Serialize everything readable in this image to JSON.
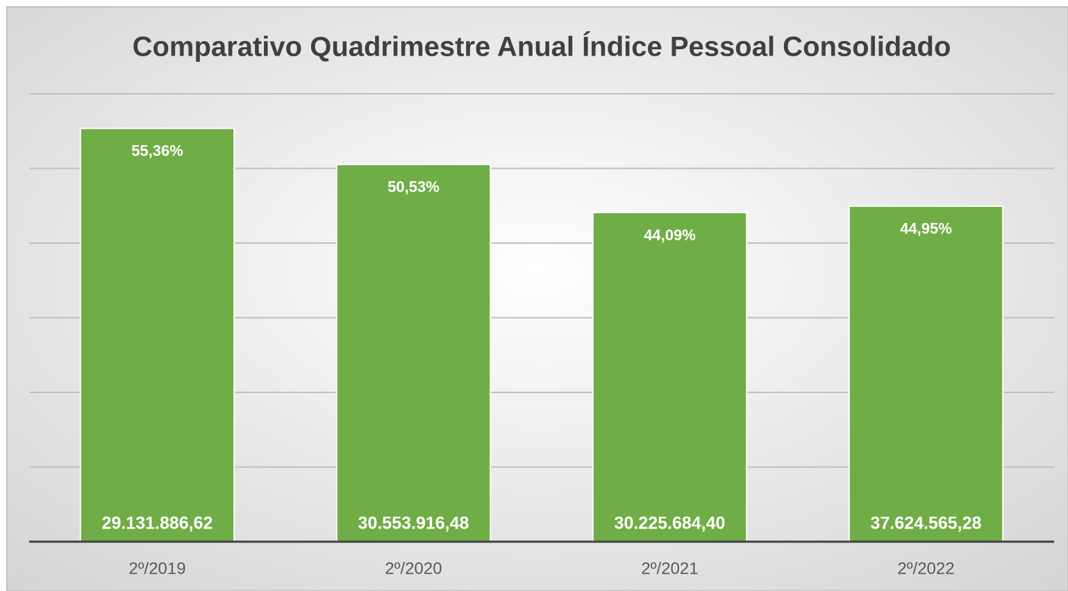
{
  "chart_data": {
    "type": "bar",
    "title": "Comparativo Quadrimestre Anual Índice Pessoal Consolidado",
    "categories": [
      "2º/2019",
      "2º/2020",
      "2º/2021",
      "2º/2022"
    ],
    "values": [
      55.36,
      50.53,
      44.09,
      44.95
    ],
    "value_labels": [
      "55,36%",
      "50,53%",
      "44,09%",
      "44,95%"
    ],
    "amounts": [
      29131886.62,
      30553916.48,
      30225684.4,
      37624565.28
    ],
    "amount_labels": [
      "29.131.886,62",
      "30.553.916,48",
      "30.225.684,40",
      "37.624.565,28"
    ],
    "color": "#70ad47",
    "ylim": [
      0,
      60
    ],
    "yticks": [
      0,
      10,
      20,
      30,
      40,
      50,
      60
    ],
    "grid": true
  }
}
